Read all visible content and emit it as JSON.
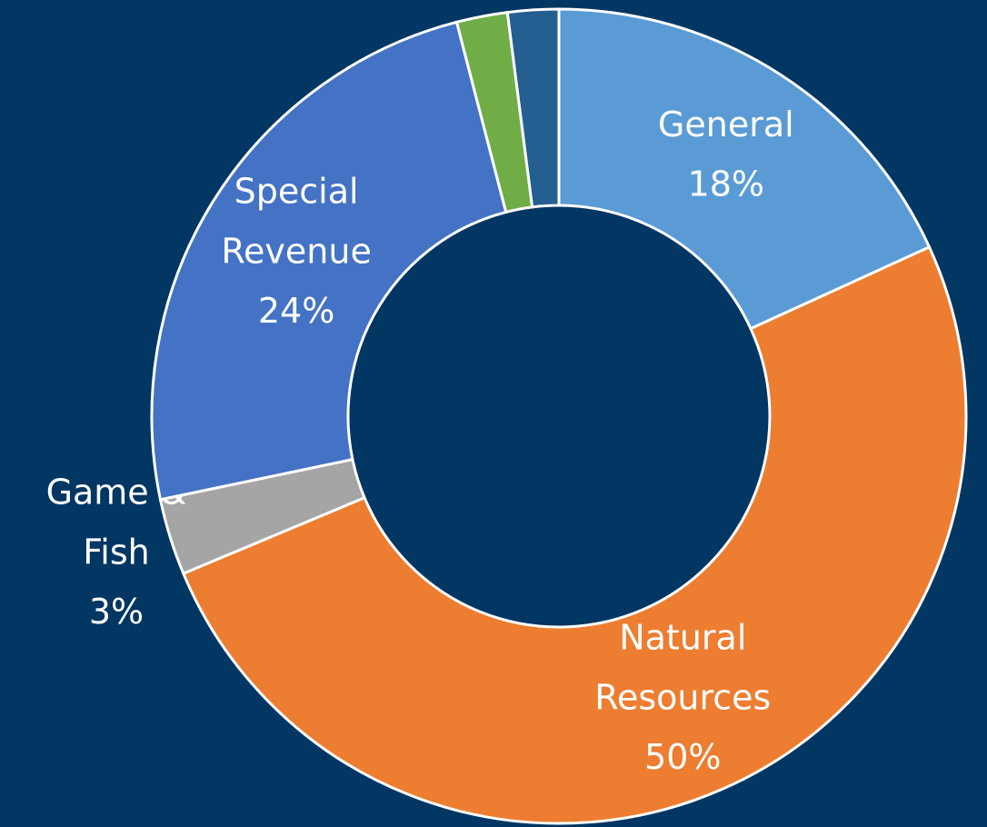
{
  "chart_data": {
    "type": "donut",
    "categories": [
      "General",
      "Natural\nResources",
      "Game &\nFish",
      "Special\nRevenue",
      null,
      null
    ],
    "values": [
      18,
      50,
      3,
      24,
      2,
      2
    ],
    "value_labels": [
      "18%",
      "50%",
      "3%",
      "24%",
      null,
      null
    ],
    "colors": [
      "#5b9bd5",
      "#ed7d31",
      "#a5a5a5",
      "#4472c4",
      "#70ad47",
      "#255e91"
    ]
  }
}
